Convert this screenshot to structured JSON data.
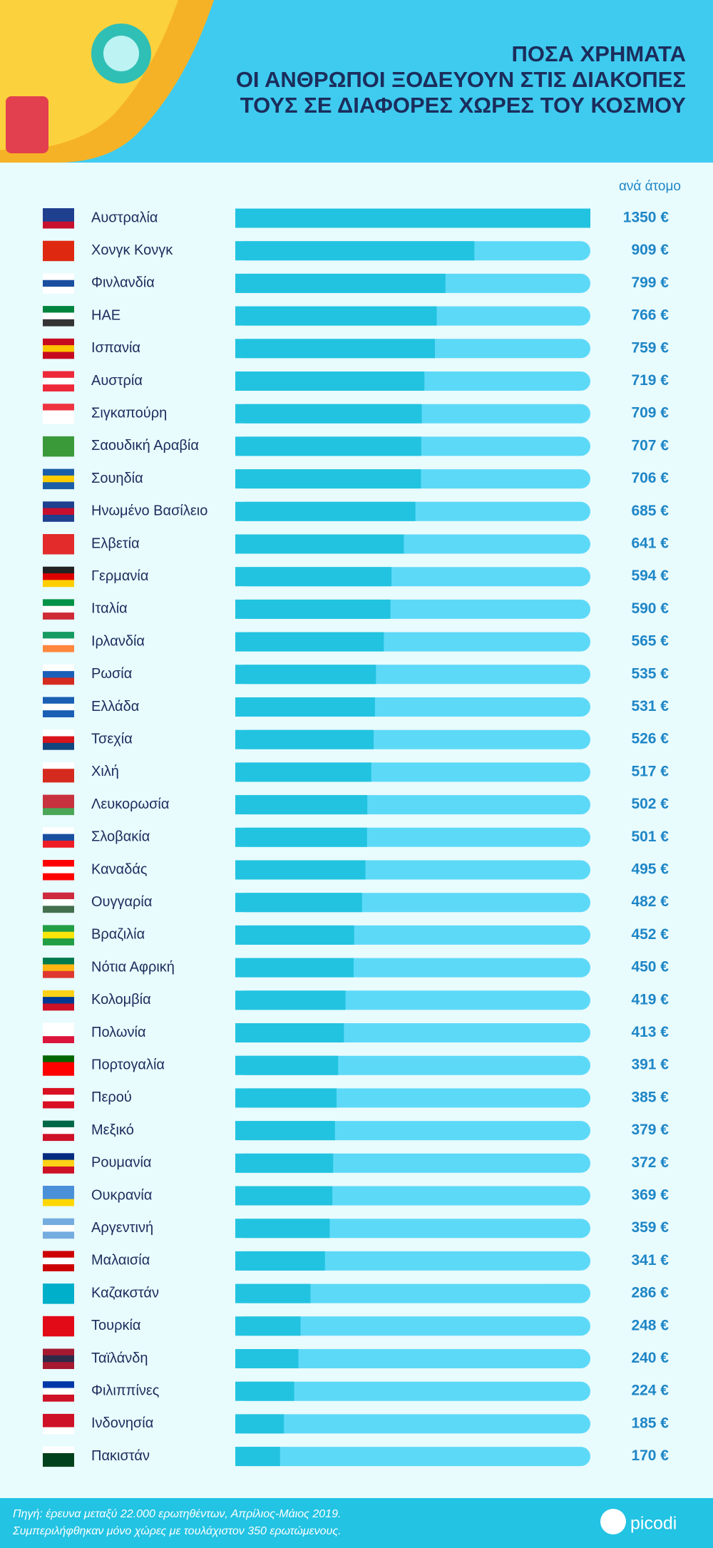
{
  "chart_data": {
    "type": "bar",
    "orientation": "horizontal",
    "title": [
      "ΠΟΣΑ ΧΡΗΜΑΤΑ",
      "ΟΙ ΑΝΘΡΩΠΟΙ ΞΟΔΕΥΟΥΝ ΣΤΙΣ ΔΙΑΚΟΠΕΣ",
      "ΤΟΥΣ ΣΕ ΔΙΑΦΟΡΕΣ ΧΩΡΕΣ ΤΟΥ ΚΟΣΜΟΥ"
    ],
    "unit_label": "ανά άτομο",
    "categories": [
      "Αυστραλία",
      "Χονγκ Κονγκ",
      "Φινλανδία",
      "ΗΑΕ",
      "Ισπανία",
      "Αυστρία",
      "Σιγκαπούρη",
      "Σαουδική Αραβία",
      "Σουηδία",
      "Ηνωμένο Βασίλειο",
      "Ελβετία",
      "Γερμανία",
      "Ιταλία",
      "Ιρλανδία",
      "Ρωσία",
      "Ελλάδα",
      "Τσεχία",
      "Χιλή",
      "Λευκορωσία",
      "Σλοβακία",
      "Καναδάς",
      "Ουγγαρία",
      "Βραζιλία",
      "Νότια Αφρική",
      "Κολομβία",
      "Πολωνία",
      "Πορτογαλία",
      "Περού",
      "Μεξικό",
      "Ρουμανία",
      "Ουκρανία",
      "Αργεντινή",
      "Μαλαισία",
      "Καζακστάν",
      "Τουρκία",
      "Ταϊλάνδη",
      "Φιλιππίνες",
      "Ινδονησία",
      "Πακιστάν"
    ],
    "values": [
      1350,
      909,
      799,
      766,
      759,
      719,
      709,
      707,
      706,
      685,
      641,
      594,
      590,
      565,
      535,
      531,
      526,
      517,
      502,
      501,
      495,
      482,
      452,
      450,
      419,
      413,
      391,
      385,
      379,
      372,
      369,
      359,
      341,
      286,
      248,
      240,
      224,
      185,
      170
    ],
    "value_labels": [
      "1350 €",
      "909 €",
      "799 €",
      "766 €",
      "759 €",
      "719 €",
      "709 €",
      "707 €",
      "706 €",
      "685 €",
      "641 €",
      "594 €",
      "590 €",
      "565 €",
      "535 €",
      "531 €",
      "526 €",
      "517 €",
      "502 €",
      "501 €",
      "495 €",
      "482 €",
      "452 €",
      "450 €",
      "419 €",
      "413 €",
      "391 €",
      "385 €",
      "379 €",
      "372 €",
      "369 €",
      "359 €",
      "341 €",
      "286 €",
      "248 €",
      "240 €",
      "224 €",
      "185 €",
      "170 €"
    ],
    "color": "#22c3e0",
    "track_color": "#5dd9f8",
    "xlim": [
      0,
      1350
    ]
  },
  "footer": {
    "source": [
      "Πηγή: έρευνα μεταξύ 22.000 ερωτηθέντων, Απρίλιος-Μάιος 2019.",
      "Συμπεριλήφθηκαν μόνο χώρες με τουλάχιστον 350 ερωτώμενους."
    ],
    "logo": "picodi"
  }
}
